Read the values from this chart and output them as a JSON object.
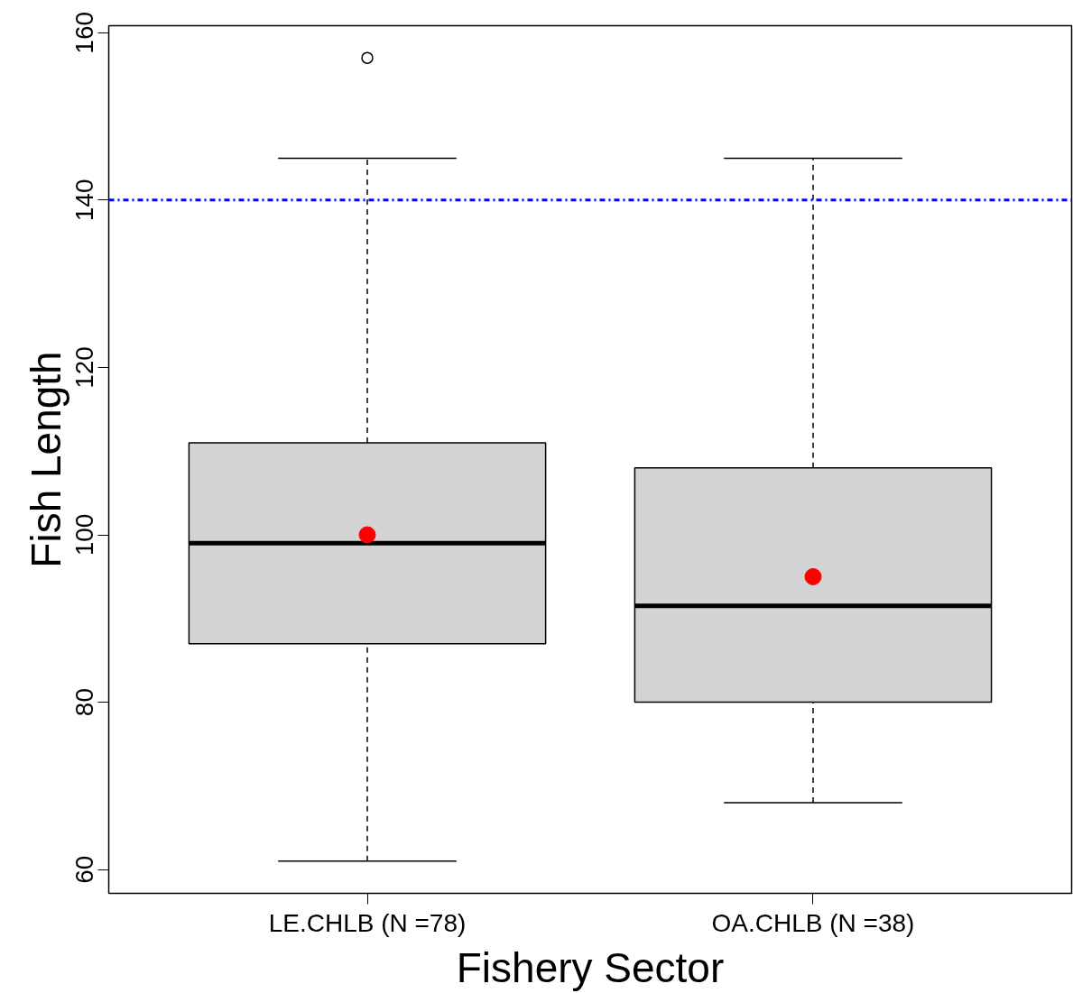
{
  "chart_data": {
    "type": "box",
    "xlabel": "Fishery Sector",
    "ylabel": "Fish Length",
    "categories": [
      "LE.CHLB (N =78)",
      "OA.CHLB (N =38)"
    ],
    "series": [
      {
        "color": "#d3d3d3",
        "boxes": [
          {
            "low": 61,
            "q1": 87,
            "median": 99,
            "q3": 111,
            "high": 145,
            "mean": 100,
            "outliers": [
              157
            ]
          },
          {
            "low": 68,
            "q1": 80,
            "median": 91.5,
            "q3": 108,
            "high": 145,
            "mean": 95
          }
        ]
      }
    ],
    "ylim": [
      57.16,
      160.84
    ],
    "yticks": [
      60,
      80,
      100,
      120,
      140,
      160
    ],
    "ref_lines": [
      {
        "axis": "y",
        "value": 140,
        "color": "#0000ff",
        "line_style": "dashdot"
      }
    ],
    "grid": false
  }
}
